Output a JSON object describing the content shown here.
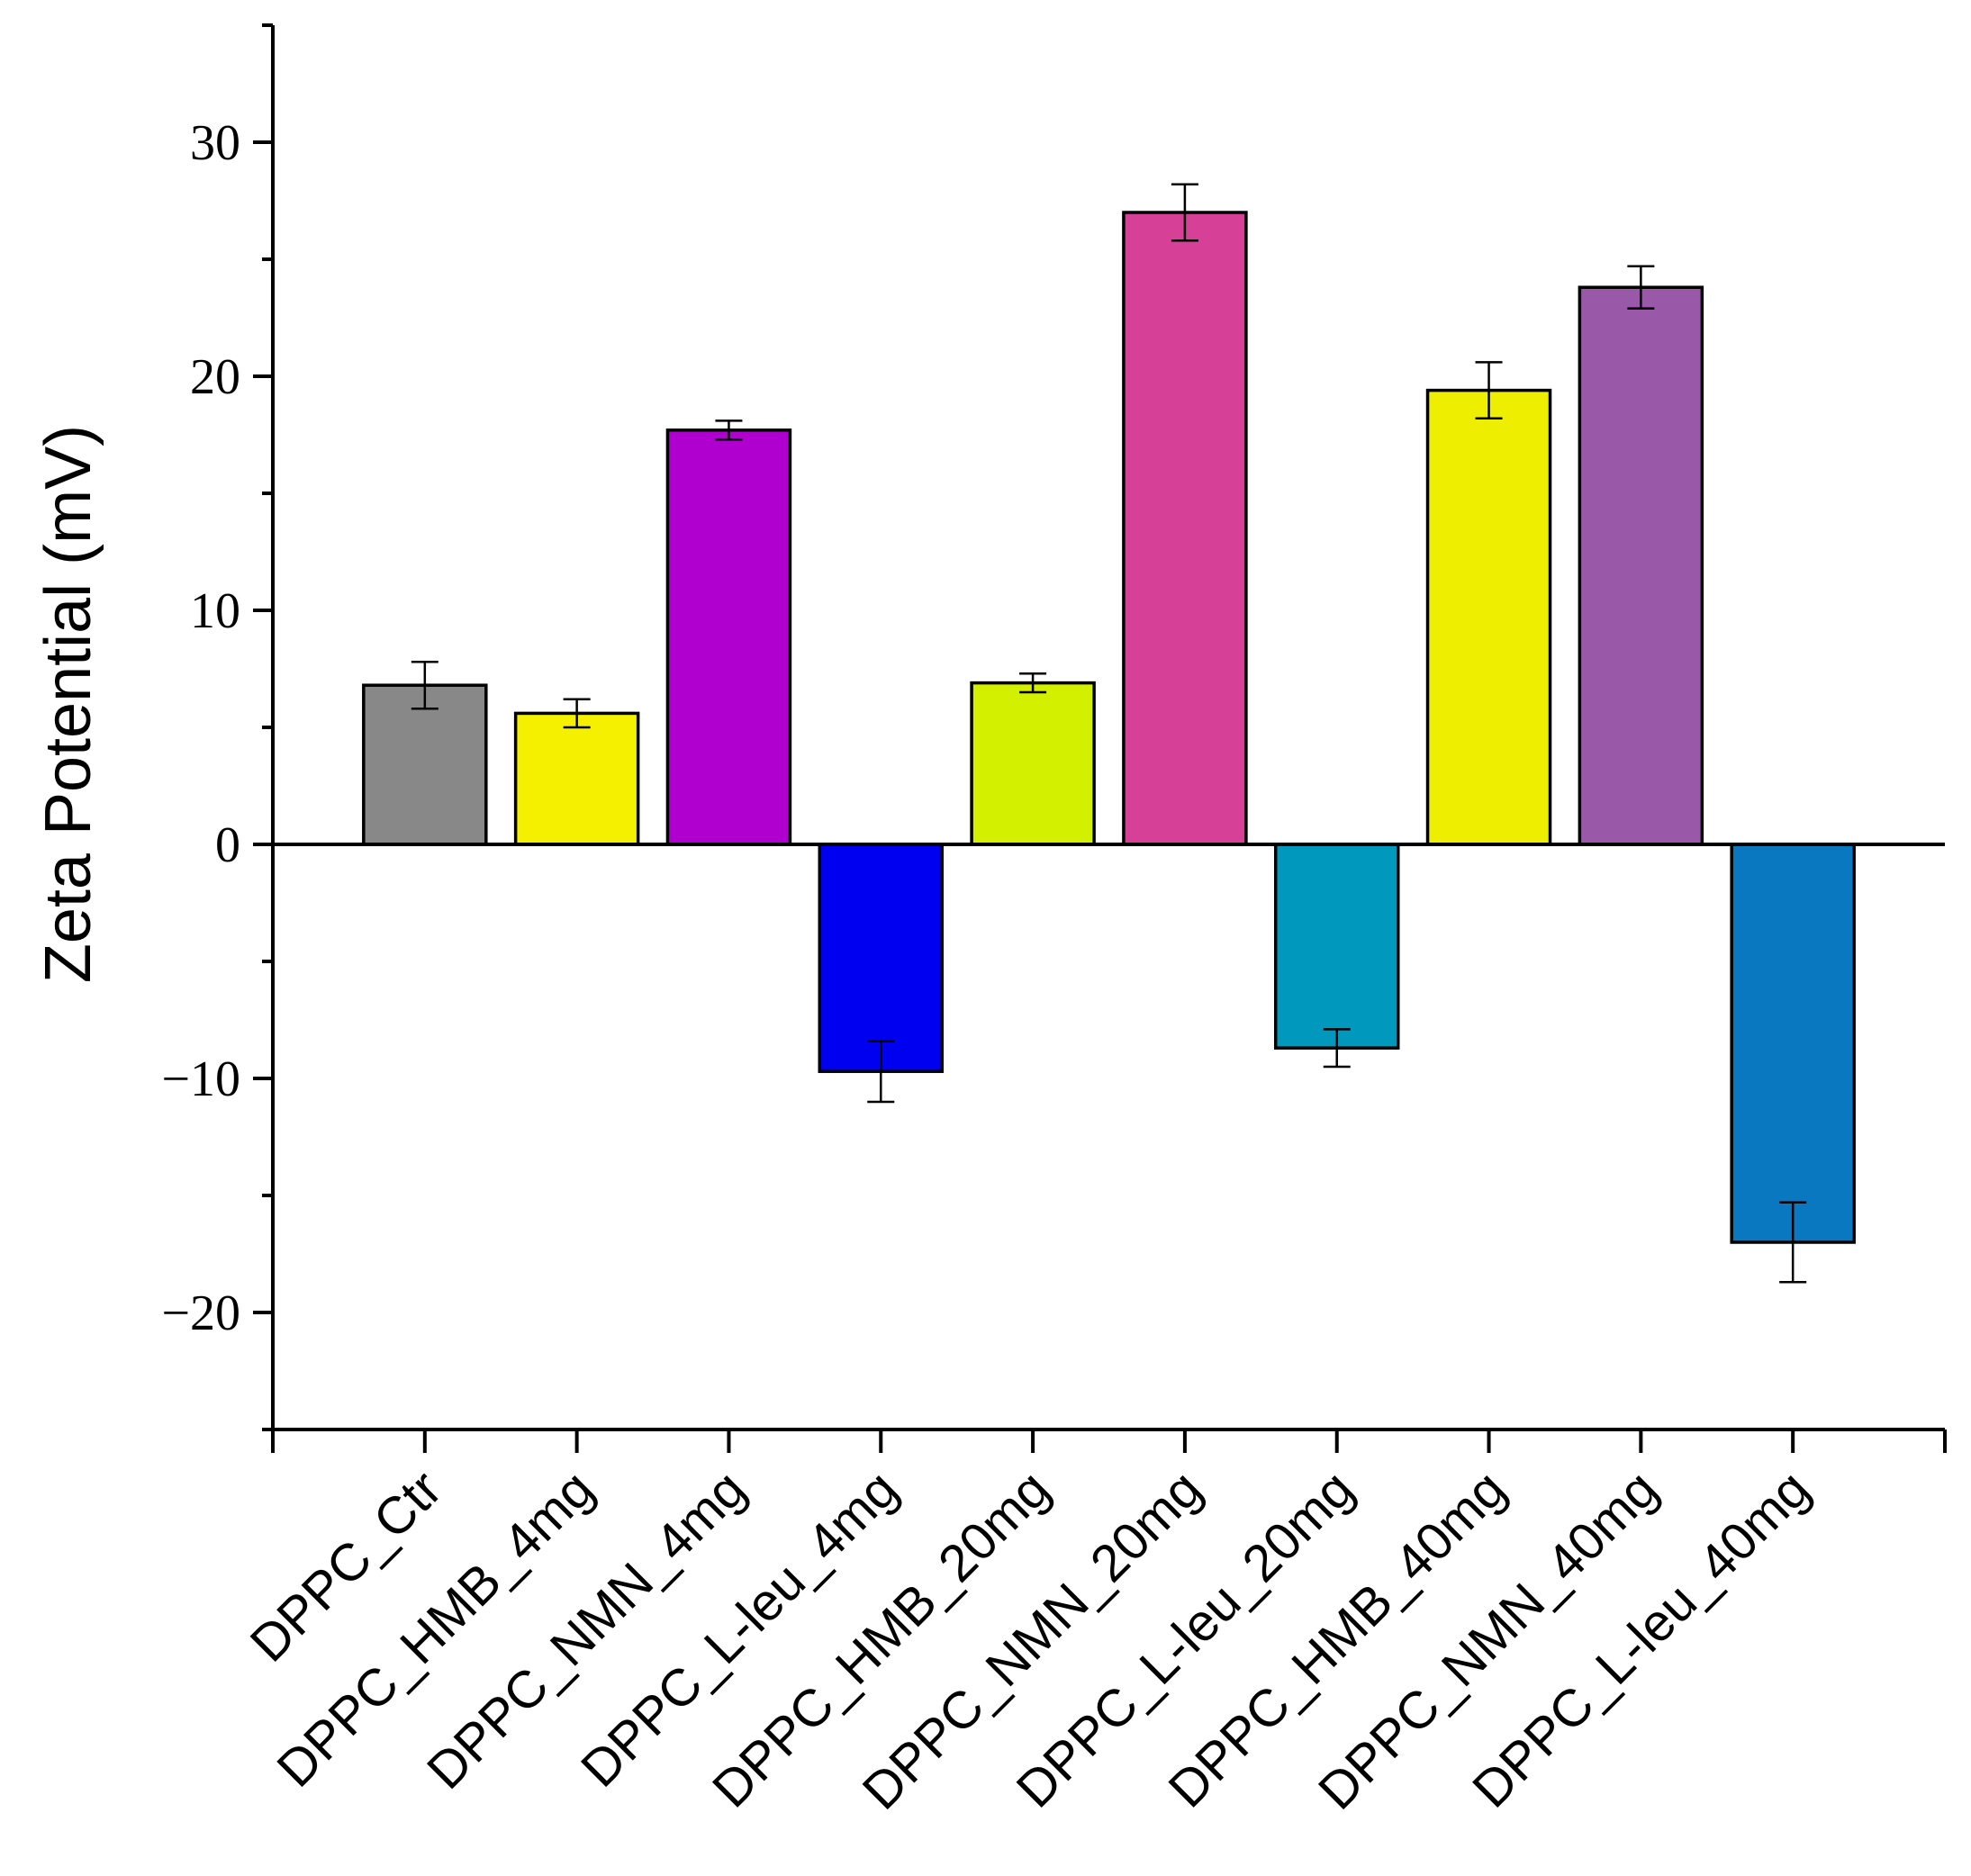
{
  "chart_data": {
    "type": "bar",
    "ylabel": "Zeta Potential (mV)",
    "xlabel": "",
    "ylim": [
      -25,
      35
    ],
    "yticks": [
      -20,
      -10,
      0,
      10,
      20,
      30
    ],
    "ytick_labels": [
      "−20",
      "−10",
      "0",
      "10",
      "20",
      "30"
    ],
    "y_minor_ticks": [
      -25,
      -15,
      -5,
      5,
      15,
      25,
      35
    ],
    "grid": false,
    "categories": [
      "DPPC_Ctr",
      "DPPC_HMB_4mg",
      "DPPC_NMN_4mg",
      "DPPC_L-leu_4mg",
      "DPPC_HMB_20mg",
      "DPPC_NMN_20mg",
      "DPPC_L-leu_20mg",
      "DPPC_HMB_40mg",
      "DPPC_NMN_40mg",
      "DPPC_L-leu_40mg"
    ],
    "values": [
      6.8,
      5.6,
      17.7,
      -9.7,
      6.9,
      27.0,
      -8.7,
      19.4,
      23.8,
      -17.0
    ],
    "errors": [
      1.0,
      0.6,
      0.4,
      1.3,
      0.4,
      1.2,
      0.8,
      1.2,
      0.9,
      1.7
    ],
    "colors": [
      "#888888",
      "#f5f000",
      "#b000d0",
      "#0000f0",
      "#d2f000",
      "#d64096",
      "#0098bc",
      "#eeee00",
      "#9a58a8",
      "#0a78c0"
    ]
  }
}
